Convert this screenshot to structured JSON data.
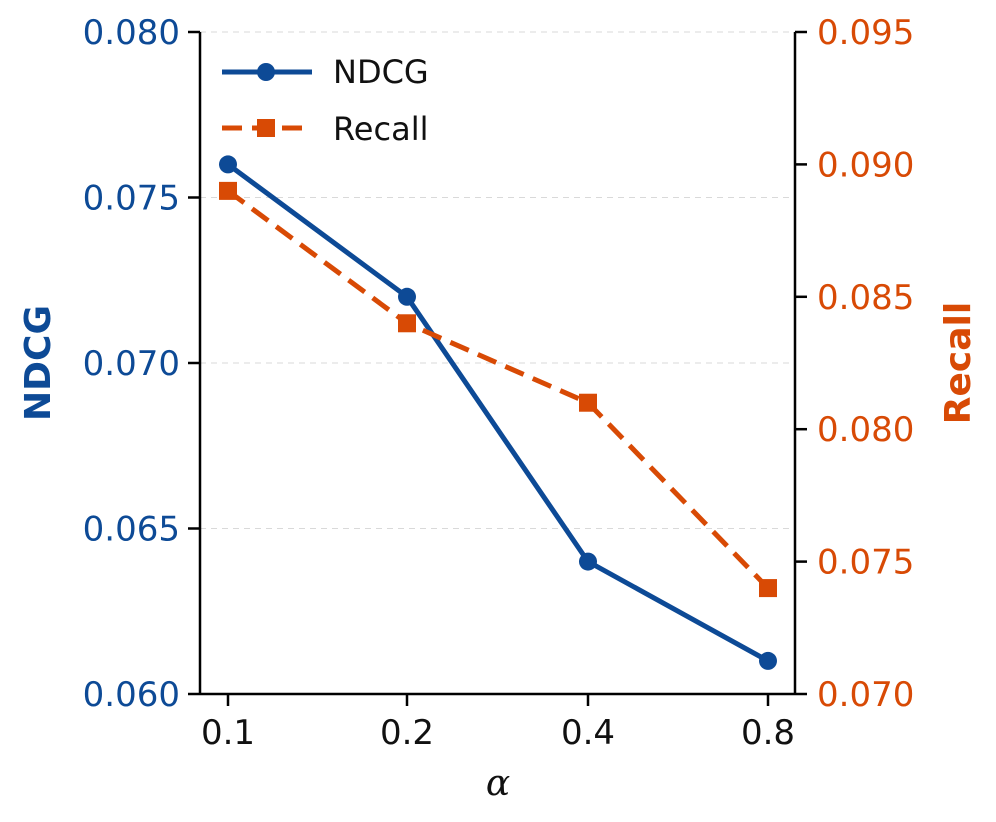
{
  "chart_data": {
    "type": "line",
    "categories": [
      "0.1",
      "0.2",
      "0.4",
      "0.8"
    ],
    "xlabel": "α",
    "y_left": {
      "label": "NDCG",
      "range": [
        0.06,
        0.08
      ],
      "ticks": [
        "0.060",
        "0.065",
        "0.070",
        "0.075",
        "0.080"
      ],
      "color": "#0d4a96"
    },
    "y_right": {
      "label": "Recall",
      "range": [
        0.07,
        0.095
      ],
      "ticks": [
        "0.070",
        "0.075",
        "0.080",
        "0.085",
        "0.090",
        "0.095"
      ],
      "color": "#d84a05"
    },
    "series": [
      {
        "name": "NDCG",
        "axis": "left",
        "values": [
          0.076,
          0.072,
          0.064,
          0.061
        ],
        "color": "#0d4a96",
        "style": "solid",
        "marker": "circle"
      },
      {
        "name": "Recall",
        "axis": "right",
        "values": [
          0.089,
          0.084,
          0.081,
          0.074
        ],
        "color": "#d84a05",
        "style": "dashed",
        "marker": "square"
      }
    ],
    "grid": "horizontal-dashed",
    "legend_position": "top-left"
  }
}
